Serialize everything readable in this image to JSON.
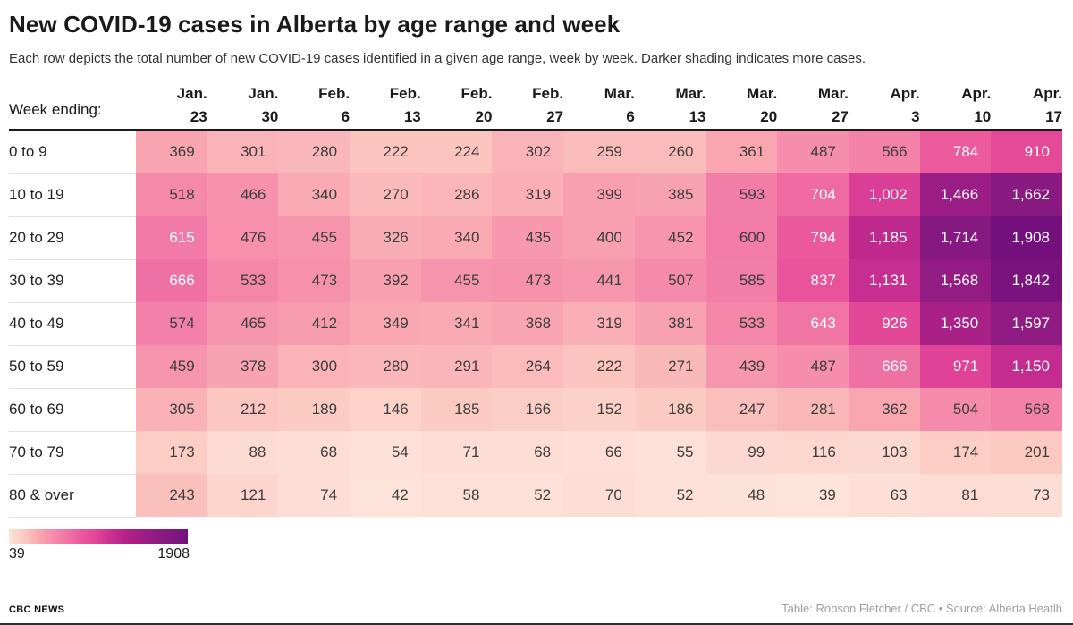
{
  "header": {
    "title": "New COVID-19 cases in Alberta by age range and week",
    "subtitle": "Each row depicts the total number of new COVID-19 cases identified in a given age range, week by week. Darker shading indicates more cases."
  },
  "table": {
    "corner_label": "Week ending:"
  },
  "legend": {
    "min_label": "39",
    "max_label": "1908"
  },
  "scale": {
    "min": 39,
    "max": 1908,
    "white_text_threshold": 610,
    "dark_text_color": "#3d3d3d",
    "light_text_color": "#ffffff",
    "stops": [
      {
        "v": 39,
        "c": "#fde3da"
      },
      {
        "v": 200,
        "c": "#fbc9c0"
      },
      {
        "v": 350,
        "c": "#f9a8b2"
      },
      {
        "v": 500,
        "c": "#f58cab"
      },
      {
        "v": 650,
        "c": "#f074a4"
      },
      {
        "v": 800,
        "c": "#ea589c"
      },
      {
        "v": 950,
        "c": "#e24597"
      },
      {
        "v": 1100,
        "c": "#cc3194"
      },
      {
        "v": 1250,
        "c": "#b52289"
      },
      {
        "v": 1450,
        "c": "#9c1d85"
      },
      {
        "v": 1700,
        "c": "#861a81"
      },
      {
        "v": 1908,
        "c": "#74107d"
      }
    ]
  },
  "footer": {
    "brand": "CBC NEWS",
    "credit": "Table: Robson Fletcher / CBC • Source: Alberta Heatlh"
  },
  "chart_data": {
    "type": "heatmap",
    "title": "New COVID-19 cases in Alberta by age range and week",
    "subtitle": "Each row depicts the total number of new COVID-19 cases identified in a given age range, week by week. Darker shading indicates more cases.",
    "x_label": "Week ending:",
    "columns": [
      "Jan. 23",
      "Jan. 30",
      "Feb. 6",
      "Feb. 13",
      "Feb. 20",
      "Feb. 27",
      "Mar. 6",
      "Mar. 13",
      "Mar. 20",
      "Mar. 27",
      "Apr. 3",
      "Apr. 10",
      "Apr. 17"
    ],
    "rows": [
      "0 to 9",
      "10 to 19",
      "20 to 29",
      "30 to 39",
      "40 to 49",
      "50 to 59",
      "60 to 69",
      "70 to 79",
      "80 & over"
    ],
    "values": [
      [
        369,
        301,
        280,
        222,
        224,
        302,
        259,
        260,
        361,
        487,
        566,
        784,
        910
      ],
      [
        518,
        466,
        340,
        270,
        286,
        319,
        399,
        385,
        593,
        704,
        1002,
        1466,
        1662
      ],
      [
        615,
        476,
        455,
        326,
        340,
        435,
        400,
        452,
        600,
        794,
        1185,
        1714,
        1908
      ],
      [
        666,
        533,
        473,
        392,
        455,
        473,
        441,
        507,
        585,
        837,
        1131,
        1568,
        1842
      ],
      [
        574,
        465,
        412,
        349,
        341,
        368,
        319,
        381,
        533,
        643,
        926,
        1350,
        1597
      ],
      [
        459,
        378,
        300,
        280,
        291,
        264,
        222,
        271,
        439,
        487,
        666,
        971,
        1150
      ],
      [
        305,
        212,
        189,
        146,
        185,
        166,
        152,
        186,
        247,
        281,
        362,
        504,
        568
      ],
      [
        173,
        88,
        68,
        54,
        71,
        68,
        66,
        55,
        99,
        116,
        103,
        174,
        201
      ],
      [
        243,
        121,
        74,
        42,
        58,
        52,
        70,
        52,
        48,
        39,
        63,
        81,
        73
      ]
    ],
    "color_range": {
      "min": 39,
      "max": 1908
    },
    "legend_position": "bottom-left",
    "grid": false
  }
}
